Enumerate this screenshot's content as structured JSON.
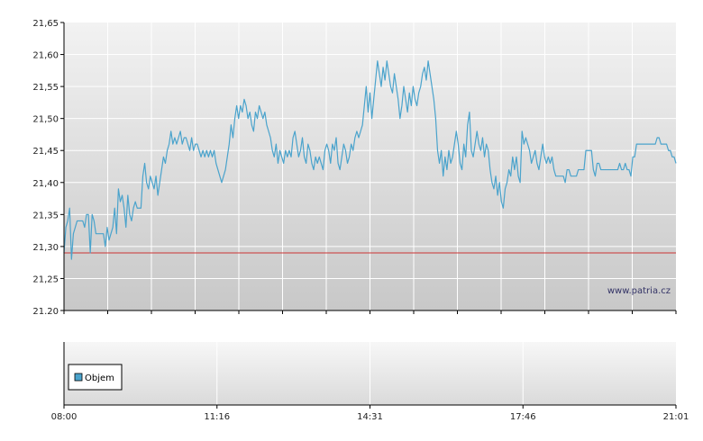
{
  "chart_data": [
    {
      "type": "line",
      "title": "",
      "xlabel": "",
      "ylabel": "",
      "ylim": [
        21.2,
        21.65
      ],
      "y_ticks": [
        "21,65",
        "21,60",
        "21,55",
        "21,50",
        "21,45",
        "21,40",
        "21,35",
        "21,30",
        "21,25",
        "21.20"
      ],
      "grid": true,
      "reference_line": 21.29,
      "watermark": "www.patria.cz",
      "colors": {
        "line": "#4aa3cc",
        "reference": "#cc3333",
        "plot_bg_top": "#f2f2f2",
        "plot_bg_bottom": "#c8c8c8"
      },
      "series": [
        {
          "values": [
            21.29,
            21.33,
            21.34,
            21.36,
            21.28,
            21.32,
            21.33,
            21.34,
            21.34,
            21.34,
            21.34,
            21.33,
            21.35,
            21.35,
            21.29,
            21.35,
            21.34,
            21.32,
            21.32,
            21.32,
            21.32,
            21.32,
            21.3,
            21.33,
            21.31,
            21.32,
            21.33,
            21.36,
            21.32,
            21.39,
            21.37,
            21.38,
            21.36,
            21.33,
            21.38,
            21.35,
            21.34,
            21.36,
            21.37,
            21.36,
            21.36,
            21.36,
            21.41,
            21.43,
            21.4,
            21.39,
            21.41,
            21.4,
            21.39,
            21.41,
            21.38,
            21.4,
            21.42,
            21.44,
            21.43,
            21.45,
            21.46,
            21.48,
            21.46,
            21.47,
            21.46,
            21.47,
            21.48,
            21.46,
            21.47,
            21.47,
            21.46,
            21.45,
            21.47,
            21.45,
            21.46,
            21.46,
            21.45,
            21.44,
            21.45,
            21.44,
            21.45,
            21.44,
            21.45,
            21.44,
            21.45,
            21.43,
            21.42,
            21.41,
            21.4,
            21.41,
            21.42,
            21.44,
            21.46,
            21.49,
            21.47,
            21.5,
            21.52,
            21.5,
            21.52,
            21.51,
            21.53,
            21.52,
            21.5,
            21.51,
            21.49,
            21.48,
            21.51,
            21.5,
            21.52,
            21.51,
            21.5,
            21.51,
            21.49,
            21.48,
            21.47,
            21.45,
            21.44,
            21.46,
            21.43,
            21.45,
            21.44,
            21.43,
            21.45,
            21.44,
            21.45,
            21.44,
            21.47,
            21.48,
            21.46,
            21.44,
            21.45,
            21.47,
            21.44,
            21.43,
            21.46,
            21.45,
            21.43,
            21.42,
            21.44,
            21.43,
            21.44,
            21.43,
            21.42,
            21.45,
            21.46,
            21.45,
            21.43,
            21.46,
            21.45,
            21.47,
            21.43,
            21.42,
            21.44,
            21.46,
            21.45,
            21.43,
            21.44,
            21.46,
            21.45,
            21.47,
            21.48,
            21.47,
            21.48,
            21.49,
            21.52,
            21.55,
            21.51,
            21.54,
            21.5,
            21.53,
            21.56,
            21.59,
            21.57,
            21.55,
            21.58,
            21.56,
            21.59,
            21.57,
            21.55,
            21.54,
            21.57,
            21.55,
            21.53,
            21.5,
            21.52,
            21.55,
            21.53,
            21.51,
            21.54,
            21.52,
            21.55,
            21.53,
            21.52,
            21.54,
            21.55,
            21.57,
            21.58,
            21.56,
            21.59,
            21.57,
            21.55,
            21.53,
            21.5,
            21.45,
            21.43,
            21.45,
            21.41,
            21.44,
            21.42,
            21.45,
            21.43,
            21.44,
            21.46,
            21.48,
            21.46,
            21.43,
            21.42,
            21.46,
            21.44,
            21.49,
            21.51,
            21.45,
            21.44,
            21.46,
            21.48,
            21.46,
            21.45,
            21.47,
            21.44,
            21.46,
            21.45,
            21.42,
            21.4,
            21.39,
            21.41,
            21.38,
            21.4,
            21.37,
            21.36,
            21.39,
            21.4,
            21.42,
            21.41,
            21.44,
            21.42,
            21.44,
            21.41,
            21.4,
            21.48,
            21.46,
            21.47,
            21.46,
            21.45,
            21.43,
            21.44,
            21.45,
            21.43,
            21.42,
            21.44,
            21.46,
            21.44,
            21.43,
            21.44,
            21.43,
            21.44,
            21.42,
            21.41,
            21.41,
            21.41,
            21.41,
            21.41,
            21.4,
            21.42,
            21.42,
            21.41,
            21.41,
            21.41,
            21.41,
            21.42,
            21.42,
            21.42,
            21.42,
            21.45,
            21.45,
            21.45,
            21.45,
            21.42,
            21.41,
            21.43,
            21.43,
            21.42,
            21.42,
            21.42,
            21.42,
            21.42,
            21.42,
            21.42,
            21.42,
            21.42,
            21.42,
            21.43,
            21.42,
            21.42,
            21.43,
            21.42,
            21.42,
            21.41,
            21.44,
            21.44,
            21.46,
            21.46,
            21.46,
            21.46,
            21.46,
            21.46,
            21.46,
            21.46,
            21.46,
            21.46,
            21.46,
            21.47,
            21.47,
            21.46,
            21.46,
            21.46,
            21.46,
            21.45,
            21.45,
            21.44,
            21.44,
            21.43
          ]
        }
      ]
    },
    {
      "type": "bar",
      "title": "",
      "xlabel": "",
      "ylabel": "",
      "x_ticks": [
        "08:00",
        "11:16",
        "14:31",
        "17:46",
        "21:01"
      ],
      "legend_position": "top-left",
      "series": [
        {
          "name": "Objem",
          "values": []
        }
      ],
      "colors": {
        "legend_swatch": "#4aa3cc"
      }
    }
  ]
}
